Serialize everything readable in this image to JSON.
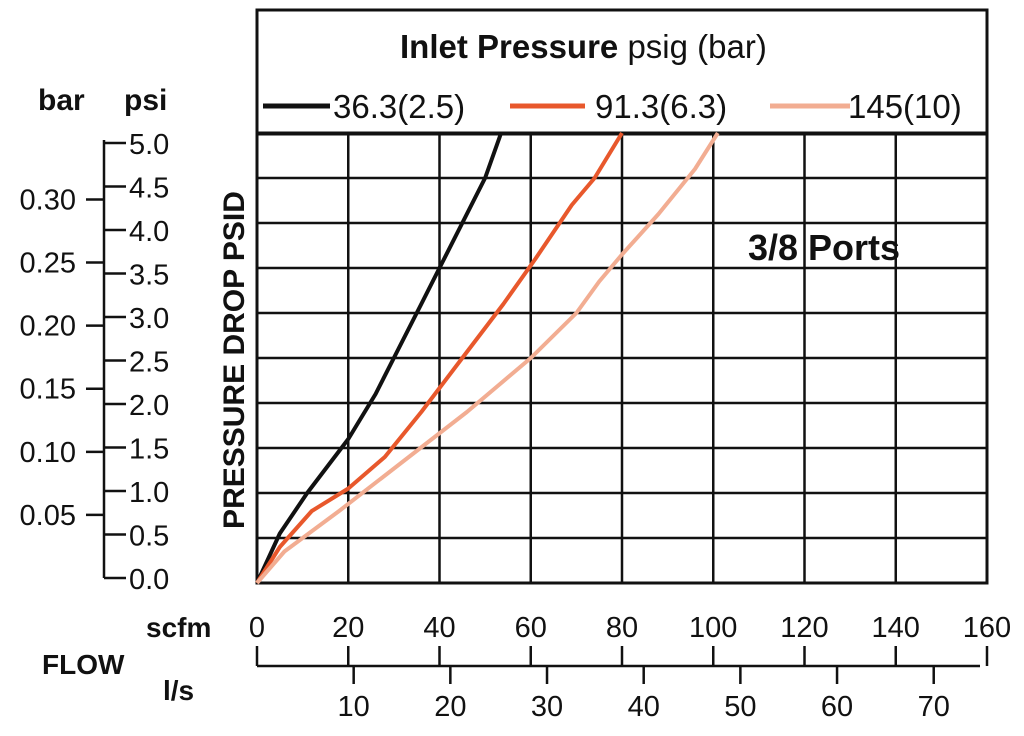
{
  "chart_data": {
    "type": "line",
    "title_bold": "Inlet Pressure",
    "title_rest": " psig (bar)",
    "annotation": "3/8 Ports",
    "ylabel": "PRESSURE DROP PSID",
    "y_psi_unit": "psi",
    "y_bar_unit": "bar",
    "x_scfm_unit": "scfm",
    "x_ls_unit": "l/s",
    "flow_label": "FLOW",
    "xlim": [
      0,
      160
    ],
    "ylim": [
      0,
      5
    ],
    "x_ticks": [
      "0",
      "20",
      "40",
      "60",
      "80",
      "100",
      "120",
      "140",
      "160"
    ],
    "x_ticks_values": [
      0,
      20,
      40,
      60,
      80,
      100,
      120,
      140,
      160
    ],
    "y_psi_ticks": [
      "0.0",
      "0.5",
      "1.0",
      "1.5",
      "2.0",
      "2.5",
      "3.0",
      "3.5",
      "4.0",
      "4.5",
      "5.0"
    ],
    "y_psi_values": [
      0,
      0.5,
      1.0,
      1.5,
      2.0,
      2.5,
      3.0,
      3.5,
      4.0,
      4.5,
      5.0
    ],
    "y_bar_ticks": [
      "0.05",
      "0.10",
      "0.15",
      "0.20",
      "0.25",
      "0.30"
    ],
    "y_bar_values": [
      0.05,
      0.1,
      0.15,
      0.2,
      0.25,
      0.3
    ],
    "ls_ticks": [
      "10",
      "20",
      "30",
      "40",
      "50",
      "60",
      "70"
    ],
    "ls_values": [
      10,
      20,
      30,
      40,
      50,
      60,
      70
    ],
    "series": [
      {
        "name": "36.3(2.5)",
        "color": "#111111",
        "points": [
          [
            0,
            0
          ],
          [
            5,
            0.55
          ],
          [
            11,
            1.0
          ],
          [
            20,
            1.6
          ],
          [
            26,
            2.1
          ],
          [
            31,
            2.6
          ],
          [
            36,
            3.1
          ],
          [
            40,
            3.5
          ],
          [
            45,
            4.0
          ],
          [
            50,
            4.5
          ],
          [
            53.5,
            5.0
          ]
        ]
      },
      {
        "name": "91.3(6.3)",
        "color": "#e8582c",
        "points": [
          [
            0,
            0
          ],
          [
            5,
            0.4
          ],
          [
            12,
            0.8
          ],
          [
            20,
            1.05
          ],
          [
            28,
            1.4
          ],
          [
            36,
            1.9
          ],
          [
            45,
            2.5
          ],
          [
            54,
            3.1
          ],
          [
            61,
            3.6
          ],
          [
            69,
            4.2
          ],
          [
            74,
            4.5
          ],
          [
            80,
            5.0
          ]
        ]
      },
      {
        "name": "145(10)",
        "color": "#f2ad92",
        "points": [
          [
            0,
            0
          ],
          [
            6,
            0.35
          ],
          [
            18,
            0.8
          ],
          [
            32,
            1.35
          ],
          [
            46,
            1.9
          ],
          [
            60,
            2.5
          ],
          [
            70,
            3.0
          ],
          [
            75,
            3.35
          ],
          [
            80,
            3.65
          ],
          [
            88,
            4.1
          ],
          [
            96,
            4.6
          ],
          [
            101,
            5.0
          ]
        ]
      }
    ]
  }
}
